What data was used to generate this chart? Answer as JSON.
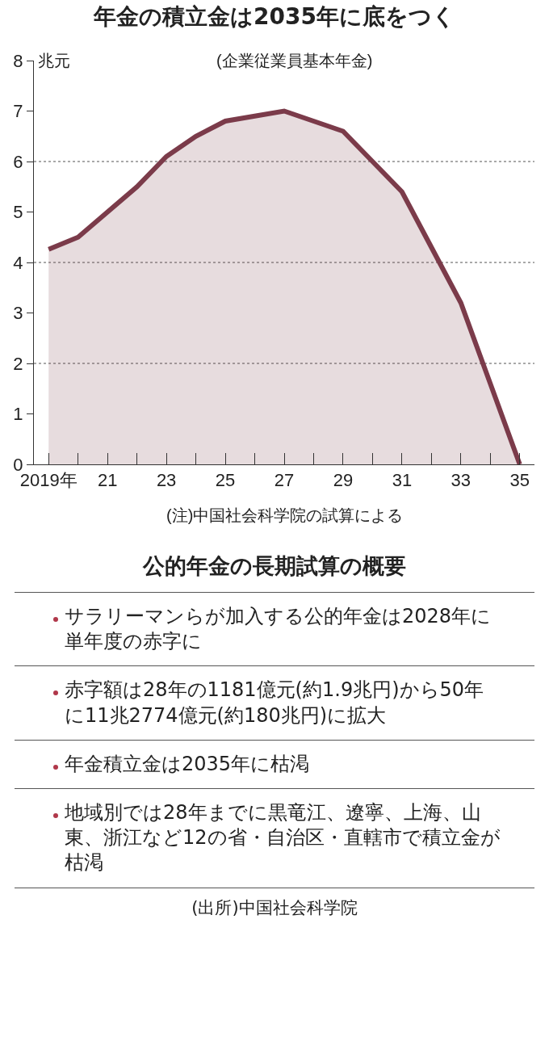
{
  "chart_data": [
    {
      "type": "area",
      "title": "年金の積立金は2035年に底をつく",
      "subtitle": "(企業従業員基本年金)",
      "ylabel": "兆元",
      "x": [
        2019,
        2020,
        2021,
        2022,
        2023,
        2024,
        2025,
        2026,
        2027,
        2028,
        2029,
        2030,
        2031,
        2032,
        2033,
        2034,
        2035
      ],
      "series": [
        {
          "color": "#7b3b4a",
          "values": [
            4.26,
            4.5,
            5.0,
            5.5,
            6.1,
            6.5,
            6.8,
            6.9,
            7.0,
            6.8,
            6.6,
            6.0,
            5.4,
            4.3,
            3.2,
            1.6,
            0
          ]
        }
      ],
      "xlim": [
        2018.5,
        2035.5
      ],
      "xticks": [
        {
          "value": 2019,
          "label": "2019年"
        },
        {
          "value": 2020,
          "label": null
        },
        {
          "value": 2021,
          "label": "21"
        },
        {
          "value": 2022,
          "label": null
        },
        {
          "value": 2023,
          "label": "23"
        },
        {
          "value": 2024,
          "label": null
        },
        {
          "value": 2025,
          "label": "25"
        },
        {
          "value": 2026,
          "label": null
        },
        {
          "value": 2027,
          "label": "27"
        },
        {
          "value": 2028,
          "label": null
        },
        {
          "value": 2029,
          "label": "29"
        },
        {
          "value": 2030,
          "label": null
        },
        {
          "value": 2031,
          "label": "31"
        },
        {
          "value": 2032,
          "label": null
        },
        {
          "value": 2033,
          "label": "33"
        },
        {
          "value": 2034,
          "label": null
        },
        {
          "value": 2035,
          "label": "35"
        }
      ],
      "ylim": [
        0,
        8
      ],
      "yticks": [
        0,
        1,
        2,
        3,
        4,
        5,
        6,
        7,
        8
      ],
      "ref_lines": [
        {
          "axis": "y",
          "value": 2,
          "line_style": "dotted"
        },
        {
          "axis": "y",
          "value": 4,
          "line_style": "dotted"
        },
        {
          "axis": "y",
          "value": 6,
          "line_style": "dotted"
        }
      ],
      "grid": false,
      "legend": false,
      "marker": "none",
      "annotations": [
        "(注)中国社会科学院の試算による"
      ]
    },
    {
      "type": "other",
      "title": "公的年金の長期試算の概要",
      "annotations": [
        "サラリーマンらが加入する公的年金は2028年に単年度の赤字に",
        "赤字額は28年の1181億元(約1.9兆円)から50年に11兆2774億元(約180兆円)に拡大",
        "年金積立金は2035年に枯渇",
        "地域別では28年までに黒竜江、遼寧、上海、山東、浙江など12の省・自治区・直轄市で積立金が枯渇",
        "(出所)中国社会科学院"
      ]
    }
  ]
}
